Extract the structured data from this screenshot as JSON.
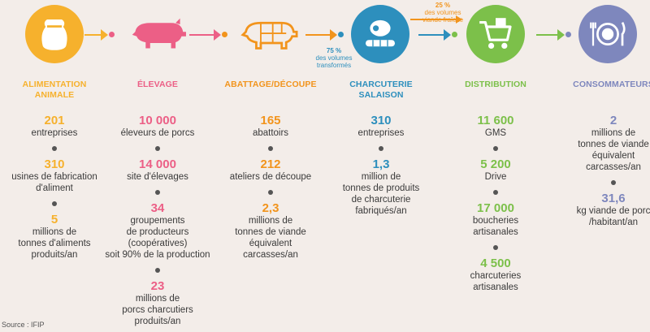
{
  "colors": {
    "alimentation": "#f6b12d",
    "elevage": "#ec5f86",
    "abattage": "#f2941c",
    "charcuterie": "#2d8fbd",
    "distribution": "#7cc04a",
    "consommateurs": "#7e87bd"
  },
  "icons": {
    "alimentation": "feed-sack-icon",
    "elevage": "pig-icon",
    "abattage": "pig-cuts-icon",
    "charcuterie": "ham-sausage-icon",
    "distribution": "shopping-cart-icon",
    "consommateurs": "plate-cutlery-icon"
  },
  "columns": [
    {
      "key": "alimentation",
      "title": [
        "ALIMENTATION",
        "ANIMALE"
      ],
      "stats": [
        {
          "value": "201",
          "label": [
            "entreprises"
          ]
        },
        {
          "value": "310",
          "label": [
            "usines de fabrication",
            "d'aliment"
          ]
        },
        {
          "value": "5",
          "label": [
            "millions de",
            "tonnes d'aliments",
            "produits/an"
          ]
        }
      ]
    },
    {
      "key": "elevage",
      "title": [
        "ÉLEVAGE"
      ],
      "stats": [
        {
          "value": "10 000",
          "label": [
            "éleveurs de porcs"
          ]
        },
        {
          "value": "14 000",
          "label": [
            "site d'élevages"
          ]
        },
        {
          "value": "34",
          "label": [
            "groupements",
            "de producteurs",
            "(coopératives)",
            "soit 90% de la production"
          ]
        },
        {
          "value": "23",
          "label": [
            "millions de",
            "porcs charcutiers",
            "produits/an"
          ]
        }
      ]
    },
    {
      "key": "abattage",
      "title": [
        "ABATTAGE/DÉCOUPE"
      ],
      "stats": [
        {
          "value": "165",
          "label": [
            "abattoirs"
          ]
        },
        {
          "value": "212",
          "label": [
            "ateliers de découpe"
          ]
        },
        {
          "value": "2,3",
          "label": [
            "millions de",
            "tonnes de viande",
            "équivalent",
            "carcasses/an"
          ]
        }
      ]
    },
    {
      "key": "charcuterie",
      "title": [
        "CHARCUTERIE",
        "SALAISON"
      ],
      "stats": [
        {
          "value": "310",
          "label": [
            "entreprises"
          ]
        },
        {
          "value": "1,3",
          "label": [
            "million de",
            "tonnes de produits",
            "de charcuterie",
            "fabriqués/an"
          ]
        }
      ]
    },
    {
      "key": "distribution",
      "title": [
        "DISTRIBUTION"
      ],
      "stats": [
        {
          "value": "11 600",
          "label": [
            "GMS"
          ]
        },
        {
          "value": "5 200",
          "label": [
            "Drive"
          ]
        },
        {
          "value": "17 000",
          "label": [
            "boucheries",
            "artisanales"
          ]
        },
        {
          "value": "4 500",
          "label": [
            "charcuteries",
            "artisanales"
          ]
        }
      ]
    },
    {
      "key": "consommateurs",
      "title": [
        "CONSOMMATEURS"
      ],
      "stats": [
        {
          "value": "2",
          "label": [
            "millions de",
            "tonnes de viande",
            "équivalent",
            "carcasses/an"
          ]
        },
        {
          "value": "31,6",
          "label": [
            "kg viande de porc",
            "/habitant/an"
          ]
        }
      ]
    }
  ],
  "flows": {
    "transformed": {
      "pct": "75 %",
      "line1": "des volumes",
      "line2": "transformés"
    },
    "fresh": {
      "pct": "25 %",
      "line1": "des volumes",
      "line2": "viande fraîche"
    }
  },
  "source": "Source : IFIP"
}
